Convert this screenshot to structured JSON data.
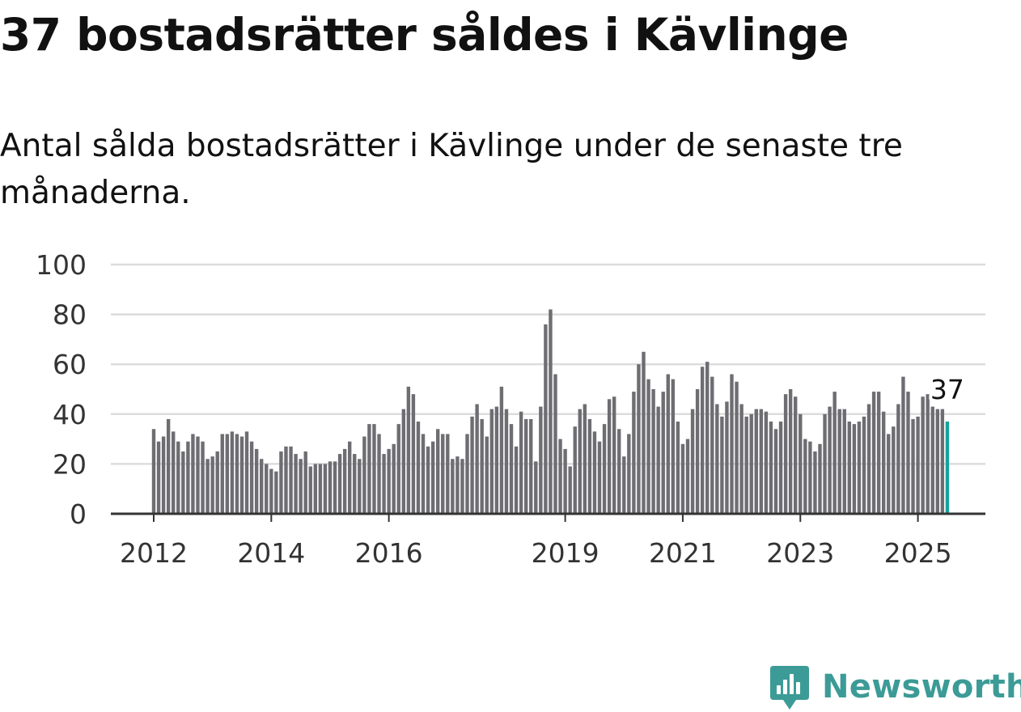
{
  "title": "37 bostadsrätter såldes i Kävlinge",
  "subtitle": "Antal sålda bostadsrätter i Kävlinge under de senaste tre månaderna.",
  "brand": {
    "name": "Newsworthy",
    "color": "#3c9b96",
    "icon": "newsworthy-logo-icon"
  },
  "chart_data": {
    "type": "bar",
    "title": "37 bostadsrätter såldes i Kävlinge",
    "subtitle": "Antal sålda bostadsrätter i Kävlinge under de senaste tre månaderna.",
    "xlabel": "",
    "ylabel": "",
    "ylim": [
      0,
      100
    ],
    "yticks": [
      0,
      20,
      40,
      60,
      80,
      100
    ],
    "xticks": [
      "2012",
      "2014",
      "2016",
      "2019",
      "2021",
      "2023",
      "2025"
    ],
    "x_start": "2012-01",
    "x_interval": "month",
    "grid": true,
    "legend": "none",
    "colors": {
      "bar": "#6e6d72",
      "highlight": "#14a39a",
      "grid": "#dcdcdc",
      "axis": "#333333"
    },
    "highlight_label": "37",
    "values": [
      34,
      29,
      31,
      38,
      33,
      29,
      25,
      29,
      32,
      31,
      29,
      22,
      23,
      25,
      32,
      32,
      33,
      32,
      31,
      33,
      29,
      26,
      22,
      20,
      18,
      17,
      25,
      27,
      27,
      24,
      22,
      25,
      19,
      20,
      20,
      20,
      21,
      21,
      24,
      26,
      29,
      24,
      22,
      31,
      36,
      36,
      32,
      24,
      26,
      28,
      36,
      42,
      51,
      48,
      37,
      32,
      27,
      29,
      34,
      32,
      32,
      22,
      23,
      22,
      32,
      39,
      44,
      38,
      31,
      42,
      43,
      51,
      42,
      36,
      27,
      41,
      38,
      38,
      21,
      43,
      76,
      82,
      56,
      30,
      26,
      19,
      35,
      42,
      44,
      38,
      33,
      29,
      36,
      46,
      47,
      34,
      23,
      32,
      49,
      60,
      65,
      54,
      50,
      43,
      49,
      56,
      54,
      37,
      28,
      30,
      42,
      50,
      59,
      61,
      55,
      44,
      39,
      45,
      56,
      53,
      44,
      39,
      40,
      42,
      42,
      41,
      37,
      34,
      37,
      48,
      50,
      47,
      40,
      30,
      29,
      25,
      28,
      40,
      43,
      49,
      42,
      42,
      37,
      36,
      37,
      39,
      44,
      49,
      49,
      41,
      32,
      35,
      44,
      55,
      49,
      38,
      39,
      47,
      48,
      43,
      42,
      42,
      37
    ]
  }
}
